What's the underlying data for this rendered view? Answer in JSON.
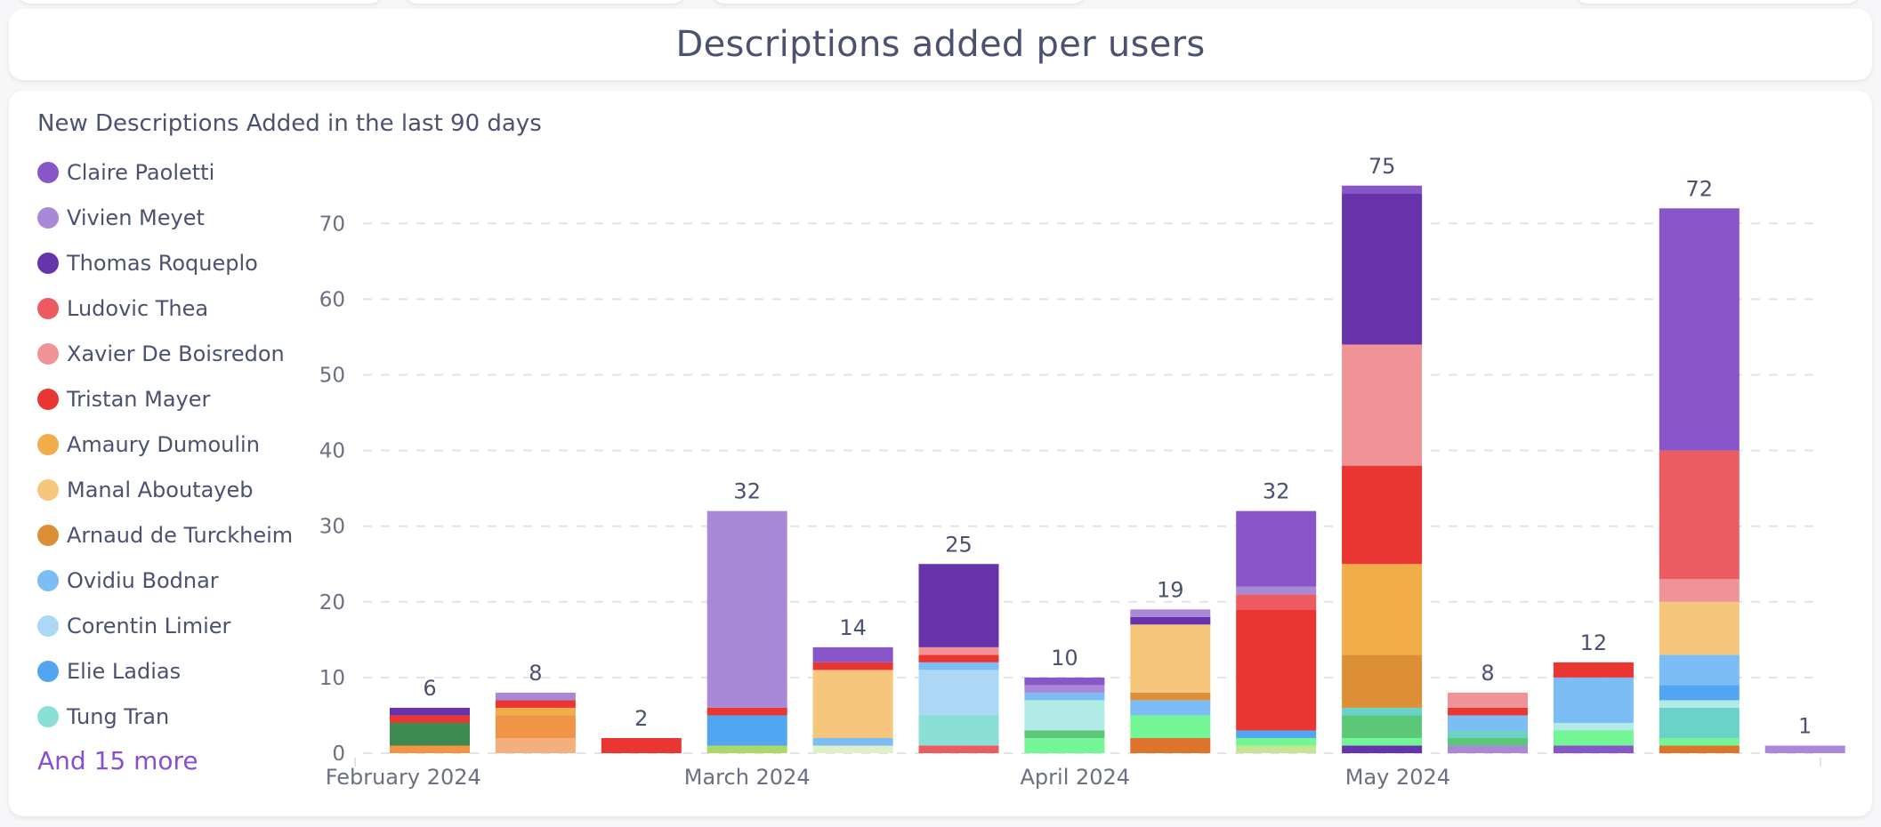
{
  "page": {
    "title": "Descriptions added per users"
  },
  "chart_data": {
    "type": "bar",
    "stacked": true,
    "title": "New Descriptions Added in the last 90 days",
    "xlabel": "",
    "ylabel": "",
    "ylim": [
      0,
      75
    ],
    "yticks": [
      0,
      10,
      20,
      30,
      40,
      50,
      60,
      70
    ],
    "grid": true,
    "legend_position": "left",
    "x_month_labels": [
      {
        "label": "February 2024",
        "at_bar": -0.25
      },
      {
        "label": "March 2024",
        "at_bar": 3.0
      },
      {
        "label": "April 2024",
        "at_bar": 6.1
      },
      {
        "label": "May 2024",
        "at_bar": 9.15
      }
    ],
    "totals": [
      6,
      8,
      2,
      32,
      14,
      25,
      10,
      19,
      32,
      75,
      8,
      12,
      72,
      1
    ],
    "legend": [
      {
        "name": "Claire Paoletti",
        "color": "#8856c9"
      },
      {
        "name": "Vivien Meyet",
        "color": "#a988d8"
      },
      {
        "name": "Thomas Roqueplo",
        "color": "#6733ab"
      },
      {
        "name": "Ludovic Thea",
        "color": "#ec5b61"
      },
      {
        "name": "Xavier De Boisredon",
        "color": "#ef9396"
      },
      {
        "name": "Tristan Mayer",
        "color": "#e93633"
      },
      {
        "name": "Amaury Dumoulin",
        "color": "#f2ac4a"
      },
      {
        "name": "Manal Aboutayeb",
        "color": "#f5c67c"
      },
      {
        "name": "Arnaud de Turckheim",
        "color": "#dc8f34"
      },
      {
        "name": "Ovidiu Bodnar",
        "color": "#7bbdf4"
      },
      {
        "name": "Corentin Limier",
        "color": "#acd8f6"
      },
      {
        "name": "Elie Ladias",
        "color": "#52a6f1"
      },
      {
        "name": "Tung Tran",
        "color": "#8adfd6"
      }
    ],
    "legend_more": "And 15 more",
    "bars": [
      [
        {
          "c": "#f09446",
          "v": 1
        },
        {
          "c": "#3e8a51",
          "v": 3
        },
        {
          "c": "#e93633",
          "v": 1
        },
        {
          "c": "#6733ab",
          "v": 1
        }
      ],
      [
        {
          "c": "#f3b07d",
          "v": 2
        },
        {
          "c": "#f09446",
          "v": 3
        },
        {
          "c": "#f2ac4a",
          "v": 1
        },
        {
          "c": "#e93633",
          "v": 1
        },
        {
          "c": "#a988d8",
          "v": 1
        }
      ],
      [
        {
          "c": "#e93633",
          "v": 2
        }
      ],
      [
        {
          "c": "#acd868",
          "v": 1
        },
        {
          "c": "#52a6f1",
          "v": 4
        },
        {
          "c": "#e93633",
          "v": 1
        },
        {
          "c": "#a988d8",
          "v": 26
        }
      ],
      [
        {
          "c": "#dff0c8",
          "v": 1
        },
        {
          "c": "#7bbdf4",
          "v": 1
        },
        {
          "c": "#f5c67c",
          "v": 9
        },
        {
          "c": "#e93633",
          "v": 1
        },
        {
          "c": "#8856c9",
          "v": 2
        }
      ],
      [
        {
          "c": "#ec5b61",
          "v": 1
        },
        {
          "c": "#8adfd6",
          "v": 4
        },
        {
          "c": "#acd8f6",
          "v": 6
        },
        {
          "c": "#7bbdf4",
          "v": 1
        },
        {
          "c": "#e93633",
          "v": 1
        },
        {
          "c": "#ef9396",
          "v": 1
        },
        {
          "c": "#6733ab",
          "v": 11
        }
      ],
      [
        {
          "c": "#74f596",
          "v": 2
        },
        {
          "c": "#5cc779",
          "v": 1
        },
        {
          "c": "#b1ebe6",
          "v": 4
        },
        {
          "c": "#7bbdf4",
          "v": 1
        },
        {
          "c": "#a988d8",
          "v": 1
        },
        {
          "c": "#8856c9",
          "v": 1
        }
      ],
      [
        {
          "c": "#de742c",
          "v": 2
        },
        {
          "c": "#74f596",
          "v": 3
        },
        {
          "c": "#7bbdf4",
          "v": 2
        },
        {
          "c": "#dc8f34",
          "v": 1
        },
        {
          "c": "#f5c67c",
          "v": 9
        },
        {
          "c": "#6733ab",
          "v": 1
        },
        {
          "c": "#a988d8",
          "v": 1
        }
      ],
      [
        {
          "c": "#c6e594",
          "v": 1
        },
        {
          "c": "#74f596",
          "v": 1
        },
        {
          "c": "#52a6f1",
          "v": 1
        },
        {
          "c": "#e93633",
          "v": 16
        },
        {
          "c": "#ec5b61",
          "v": 2
        },
        {
          "c": "#a988d8",
          "v": 1
        },
        {
          "c": "#8856c9",
          "v": 10
        }
      ],
      [
        {
          "c": "#6733ab",
          "v": 1
        },
        {
          "c": "#74f596",
          "v": 1
        },
        {
          "c": "#5cc779",
          "v": 3
        },
        {
          "c": "#6ad2c8",
          "v": 1
        },
        {
          "c": "#dc8f34",
          "v": 7
        },
        {
          "c": "#f2ac4a",
          "v": 12
        },
        {
          "c": "#e93633",
          "v": 13
        },
        {
          "c": "#ef9396",
          "v": 16
        },
        {
          "c": "#6733ab",
          "v": 20
        },
        {
          "c": "#8856c9",
          "v": 1
        }
      ],
      [
        {
          "c": "#a988d8",
          "v": 1
        },
        {
          "c": "#5cc779",
          "v": 1
        },
        {
          "c": "#6ad2c8",
          "v": 1
        },
        {
          "c": "#7bbdf4",
          "v": 2
        },
        {
          "c": "#e93633",
          "v": 1
        },
        {
          "c": "#ef9396",
          "v": 2
        }
      ],
      [
        {
          "c": "#8856c9",
          "v": 1
        },
        {
          "c": "#74f596",
          "v": 2
        },
        {
          "c": "#b1ebe6",
          "v": 1
        },
        {
          "c": "#7bbdf4",
          "v": 6
        },
        {
          "c": "#e93633",
          "v": 2
        }
      ],
      [
        {
          "c": "#de742c",
          "v": 1
        },
        {
          "c": "#74f596",
          "v": 1
        },
        {
          "c": "#6ad2c8",
          "v": 4
        },
        {
          "c": "#b1ebe6",
          "v": 1
        },
        {
          "c": "#52a6f1",
          "v": 2
        },
        {
          "c": "#7bbdf4",
          "v": 4
        },
        {
          "c": "#f5c67c",
          "v": 7
        },
        {
          "c": "#ef9396",
          "v": 3
        },
        {
          "c": "#ec5b61",
          "v": 17
        },
        {
          "c": "#8856c9",
          "v": 32
        }
      ],
      [
        {
          "c": "#a988d8",
          "v": 1
        }
      ]
    ]
  }
}
